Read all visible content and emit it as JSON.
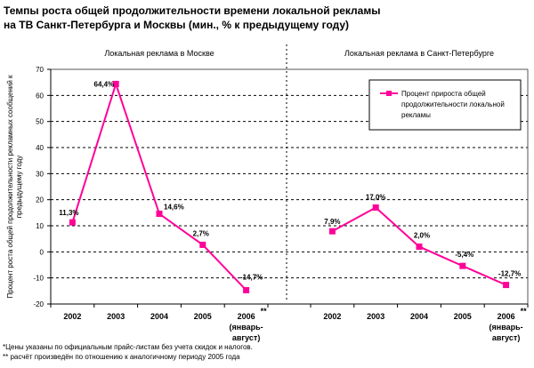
{
  "title_lines": [
    "Темпы роста общей продолжительности времени локальной рекламы",
    "на ТВ Санкт-Петербурга и Москвы (мин., % к предыдущему году)"
  ],
  "footnotes": [
    "*Цены указаны по официальным прайс-листам без учета скидок и налогов.",
    "** расчёт произведён по отношению к аналогичному периоду 2005 года"
  ],
  "chart_data": {
    "type": "line",
    "ylabel_lines": [
      "Процент роста общей продолжительности рекламных сообщений к",
      "предыдущему году"
    ],
    "ylim": [
      -20,
      70
    ],
    "yticks": [
      -20,
      -10,
      0,
      10,
      20,
      30,
      40,
      50,
      60,
      70
    ],
    "grid": true,
    "legend": {
      "label_lines": [
        "Процент прироста общей",
        "продолжительности локальной",
        "рекламы"
      ],
      "position": "top-right"
    },
    "series_color": "#FF0099",
    "panels": [
      {
        "title": "Локальная реклама в Москве",
        "categories": [
          "2002",
          "2003",
          "2004",
          "2005",
          "2006"
        ],
        "category_sublabels": [
          "",
          "",
          "",
          "",
          "(январь-|август)"
        ],
        "values": [
          11.3,
          64.4,
          14.6,
          2.7,
          -14.7
        ],
        "labels": [
          "11,3%",
          "64,4%",
          "14,6%",
          "2,7%",
          "-14,7%"
        ]
      },
      {
        "title": "Локальная реклама в Санкт-Петербурге",
        "categories": [
          "2002",
          "2003",
          "2004",
          "2005",
          "2006"
        ],
        "category_sublabels": [
          "",
          "",
          "",
          "",
          "(январь-|август)"
        ],
        "values": [
          7.9,
          17.0,
          2.0,
          -5.4,
          -12.7
        ],
        "labels": [
          "7,9%",
          "17,0%",
          "2,0%",
          "-5,4%",
          "-12,7%"
        ]
      }
    ],
    "last_category_marker": "**"
  }
}
